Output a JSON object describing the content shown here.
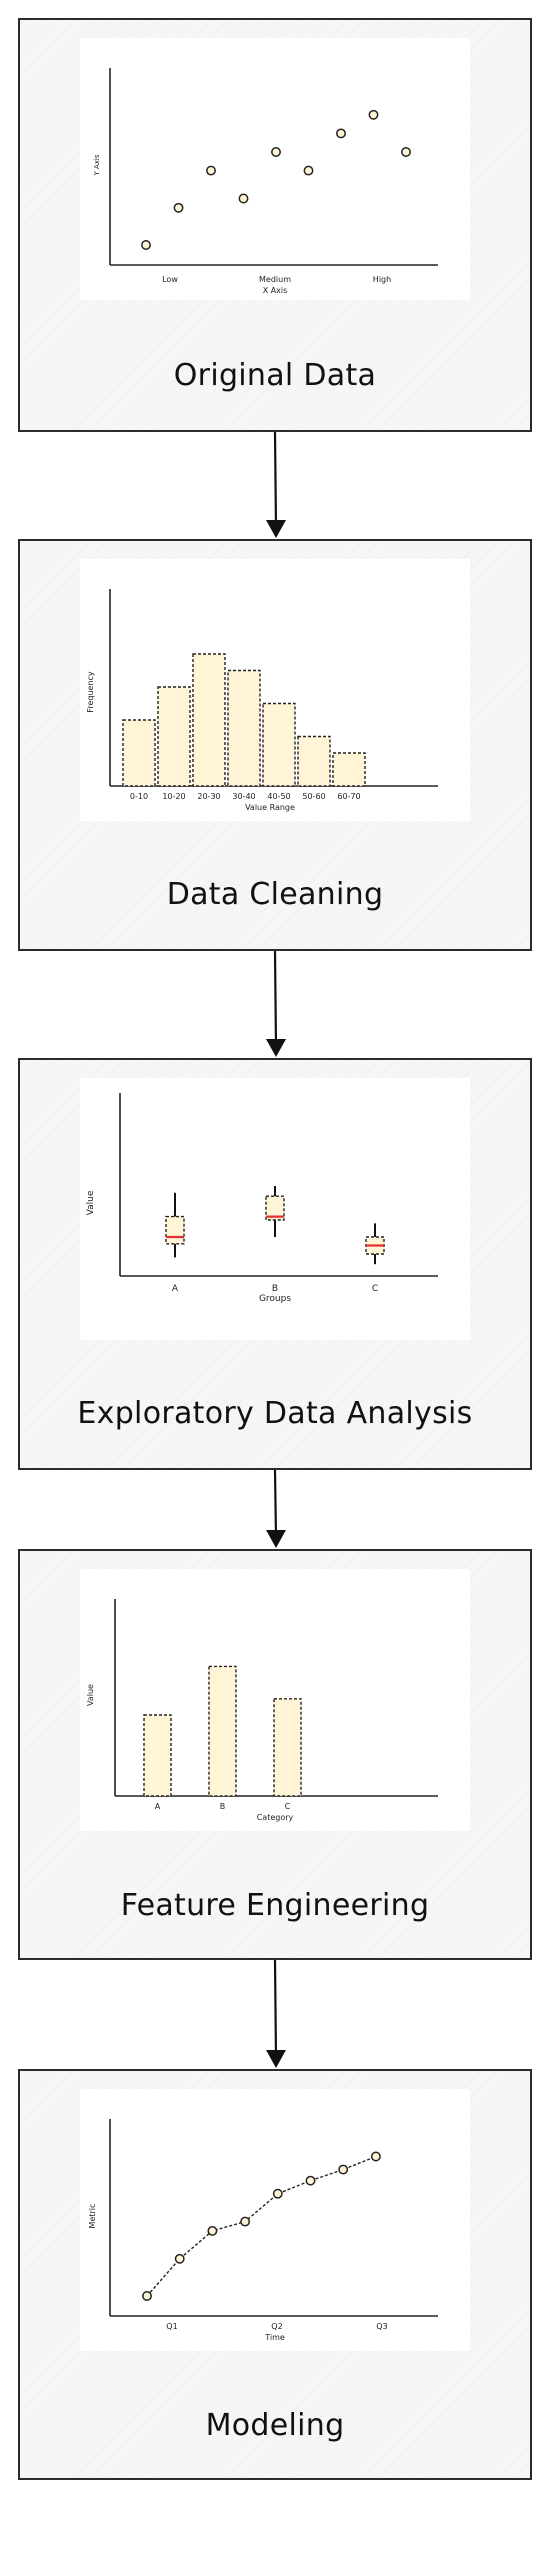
{
  "stages": [
    {
      "title": "Original Data"
    },
    {
      "title": "Data Cleaning"
    },
    {
      "title": "Exploratory Data Analysis"
    },
    {
      "title": "Feature Engineering"
    },
    {
      "title": "Modeling"
    }
  ],
  "chart_data": [
    {
      "type": "scatter",
      "xlabel": "X Axis",
      "ylabel": "Y Axis",
      "xticks": [
        "Low",
        "Medium",
        "High"
      ],
      "points": [
        [
          1,
          1
        ],
        [
          2,
          3
        ],
        [
          3,
          5
        ],
        [
          4,
          3.5
        ],
        [
          5,
          6
        ],
        [
          6,
          5
        ],
        [
          7,
          7
        ],
        [
          8,
          8
        ],
        [
          9,
          6
        ]
      ],
      "fill": "#fff5d6"
    },
    {
      "type": "bar",
      "xlabel": "Value Range",
      "ylabel": "Frequency",
      "categories": [
        "0-10",
        "10-20",
        "20-30",
        "30-40",
        "40-50",
        "50-60",
        "60-70"
      ],
      "values": [
        4,
        6,
        8,
        7,
        5,
        3,
        2
      ],
      "fill": "#fff5d6"
    },
    {
      "type": "box",
      "xlabel": "Groups",
      "ylabel": "Value",
      "categories": [
        "A",
        "B",
        "C"
      ],
      "boxes": [
        {
          "min": 1.8,
          "q1": 2.6,
          "median": 3.0,
          "q3": 4.2,
          "max": 5.6
        },
        {
          "min": 3.0,
          "q1": 4.0,
          "median": 4.2,
          "q3": 5.4,
          "max": 6.0
        },
        {
          "min": 1.4,
          "q1": 2.0,
          "median": 2.5,
          "q3": 3.0,
          "max": 3.8
        }
      ],
      "fill": "#fff5d6",
      "median_color": "#e03131"
    },
    {
      "type": "bar",
      "xlabel": "Category",
      "ylabel": "Value",
      "categories": [
        "A",
        "B",
        "C"
      ],
      "values": [
        5,
        8,
        6
      ],
      "fill": "#fff5d6"
    },
    {
      "type": "line",
      "xlabel": "Time",
      "ylabel": "Metric",
      "xticks": [
        "Q1",
        "Q2",
        "Q3"
      ],
      "points": [
        [
          1,
          1
        ],
        [
          2,
          3
        ],
        [
          3,
          4.5
        ],
        [
          4,
          5
        ],
        [
          5,
          6.5
        ],
        [
          6,
          7.2
        ],
        [
          7,
          7.8
        ],
        [
          8,
          8.5
        ]
      ],
      "fill": "#fff5d6"
    }
  ]
}
